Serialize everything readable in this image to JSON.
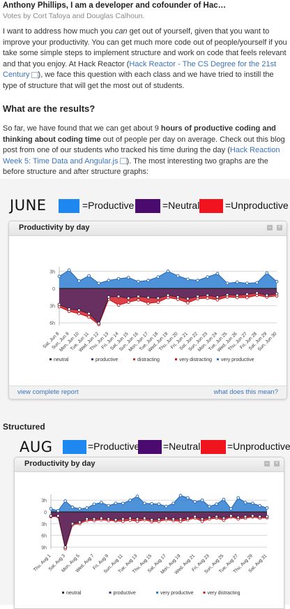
{
  "article": {
    "title": "Anthony Phillips, I am a developer and cofounder of Hac…",
    "votes_prefix": "Votes by ",
    "voters": [
      "Cort Tafoya",
      "Douglas Calhoun."
    ],
    "voters_sep": " and ",
    "para1_a": "I want to address how much you ",
    "para1_em": "can",
    "para1_b": " get out of yourself, given that you want to improve your productivity.  You can get much more code out of people/yourself if you take some simple steps to implement structure and work on code that feels relevant and that you enjoy.  At Hack Reactor (",
    "para1_link": "Hack Reactor - The CS Degree for the 21st Century",
    "para1_c": "), we face this question with each class and we have tried to instill the type of structure that will get the most out of students.",
    "heading": "What are the results?",
    "para2_a": "So far, we have found that we can get about 9 ",
    "para2_bold": "hours of productive coding and thinking about coding time",
    "para2_b": " out of people per day on average.  Check out this blog post from one of our students who tracked his time during the day (",
    "para2_link": "Hack Reaction Week 5: Time Data and Angular.js",
    "para2_c": ").  The most interesting two graphs are the before structure and after structure graphs:",
    "structured_label": "Structured"
  },
  "legend": {
    "productive": "=Productive",
    "neutral": "=Neutral",
    "unproductive": "=Unproductive"
  },
  "colors": {
    "productive": "#1e87f0",
    "neutral": "#4a0a6e",
    "unproductive": "#f0141e",
    "link": "#3b73b9"
  },
  "panel": {
    "title": "Productivity by day",
    "footer_left": "view complete report",
    "footer_right": "what does this mean?"
  },
  "chart_data": [
    {
      "type": "area",
      "month_label": "JUNE",
      "title": "Productivity by day",
      "y_ticks": [
        "3h",
        "0",
        "3h",
        "6h"
      ],
      "x": [
        "Sat, Jun 8",
        "Sun, Jun 9",
        "Mon, Jun 10",
        "Tue, Jun 11",
        "Wed, Jun 12",
        "Thu, Jun 13",
        "Fri, Jun 14",
        "Sat, Jun 15",
        "Sun, Jun 16",
        "Mon, Jun 17",
        "Tue, Jun 18",
        "Wed, Jun 19",
        "Thu, Jun 20",
        "Fri, Jun 21",
        "Sat, Jun 22",
        "Sun, Jun 23",
        "Mon, Jun 24",
        "Tue, Jun 25",
        "Wed, Jun 26",
        "Thu, Jun 27",
        "Fri, Jun 28",
        "Sat, Jun 29",
        "Sun, Jun 30"
      ],
      "x_tick_labels": [
        "Sat, Jun 8",
        "Sun, Jun 9",
        "Mon, Jun 10",
        "Tue, Jun 11",
        "Wed, Jun 12",
        "Thu, Jun 13",
        "Fri, Jun 14",
        "Sat, Jun 15",
        "Sun, Jun 16",
        "Mon, Jun 17",
        "Tue, Jun 18",
        "Wed, Jun 19",
        "Thu, Jun 20",
        "Fri, Jun 21",
        "Sat, Jun 22",
        "Sun, Jun 23",
        "Mon, Jun 24",
        "Tue, Jun 25",
        "Wed, Jun 26",
        "Thu, Jun 27",
        "Fri, Jun 28",
        "Sat, Jun 29",
        "Sun, Jun 30"
      ],
      "series": [
        {
          "name": "very productive",
          "values": [
            2.1,
            3.2,
            1.3,
            2.2,
            0.9,
            1.4,
            1.7,
            1.9,
            1.2,
            1.4,
            2.0,
            3.0,
            2.2,
            1.6,
            1.4,
            2.0,
            2.6,
            0.9,
            1.1,
            0.9,
            1.0,
            2.7,
            1.2
          ]
        },
        {
          "name": "neutral",
          "values": [
            -2.8,
            -3.6,
            -3.8,
            -4.4,
            -6.1,
            -1.5,
            -1.4,
            -1.7,
            -1.4,
            -1.6,
            -1.7,
            -1.2,
            -1.5,
            -1.8,
            -1.4,
            -1.2,
            -1.5,
            -1.1,
            -1.2,
            -1.0,
            -0.8,
            -1.2,
            -0.9
          ]
        },
        {
          "name": "very distracting",
          "values": [
            -3.2,
            -4.0,
            -4.4,
            -5.0,
            -6.3,
            -1.9,
            -2.9,
            -2.4,
            -2.0,
            -2.6,
            -2.4,
            -1.6,
            -1.9,
            -2.5,
            -1.8,
            -1.7,
            -2.0,
            -1.5,
            -1.6,
            -1.6,
            -1.2,
            -1.5,
            -1.3
          ]
        }
      ],
      "legend": [
        "neutral",
        "productive",
        "distracting",
        "very distracting",
        "very productive"
      ],
      "footer_left": "view complete report",
      "footer_right": "what does this mean?"
    },
    {
      "type": "area",
      "month_label": "AUG",
      "title": "Productivity by day",
      "y_ticks": [
        "3h",
        "0",
        "3h",
        "6h",
        "9h"
      ],
      "x": [
        "Thu, Aug 1",
        "Fri, Aug 2",
        "Sat, Aug 3",
        "Sun, Aug 4",
        "Mon, Aug 5",
        "Tue, Aug 6",
        "Wed, Aug 7",
        "Thu, Aug 8",
        "Fri, Aug 9",
        "Sat, Aug 10",
        "Sun, Aug 11",
        "Mon, Aug 12",
        "Tue, Aug 13",
        "Wed, Aug 14",
        "Thu, Aug 15",
        "Fri, Aug 16",
        "Sat, Aug 17",
        "Sun, Aug 18",
        "Mon, Aug 19",
        "Tue, Aug 20",
        "Wed, Aug 21",
        "Thu, Aug 22",
        "Fri, Aug 23",
        "Sat, Aug 24",
        "Sun, Aug 25",
        "Mon, Aug 26",
        "Tue, Aug 27",
        "Wed, Aug 28",
        "Thu, Aug 29",
        "Fri, Aug 30",
        "Sat, Aug 31"
      ],
      "x_tick_labels": [
        "Thu, Aug 1",
        "Sat, Aug 3",
        "Mon, Aug 5",
        "Wed, Aug 7",
        "Fri, Aug 9",
        "Sun, Aug 11",
        "Tue, Aug 13",
        "Thu, Aug 15",
        "Sat, Aug 17",
        "Mon, Aug 19",
        "Wed, Aug 21",
        "Fri, Aug 23",
        "Sun, Aug 25",
        "Tue, Aug 27",
        "Thu, Aug 29",
        "Sat, Aug 31"
      ],
      "series": [
        {
          "name": "very productive",
          "values": [
            0.8,
            0.3,
            2.8,
            1.2,
            0.8,
            1.0,
            2.0,
            2.4,
            1.6,
            2.2,
            2.2,
            3.0,
            4.0,
            2.2,
            2.1,
            2.0,
            1.4,
            2.2,
            4.2,
            3.6,
            2.6,
            3.0,
            1.4,
            2.0,
            3.2,
            0.8,
            3.6,
            2.4,
            2.2,
            1.6,
            1.0
          ]
        },
        {
          "name": "neutral",
          "values": [
            -1.0,
            -1.0,
            -9.0,
            -3.0,
            -2.6,
            -1.8,
            -1.8,
            -1.6,
            -1.8,
            -2.0,
            -1.8,
            -1.6,
            -1.8,
            -1.6,
            -2.0,
            -1.9,
            -1.6,
            -1.8,
            -1.8,
            -1.6,
            -1.2,
            -1.8,
            -1.4,
            -1.2,
            -1.6,
            -1.0,
            -1.4,
            -1.2,
            -1.0,
            -1.2,
            -1.2
          ]
        },
        {
          "name": "very distracting",
          "values": [
            -1.2,
            -1.2,
            -9.4,
            -3.3,
            -3.0,
            -2.2,
            -2.2,
            -2.0,
            -2.2,
            -2.3,
            -2.4,
            -2.1,
            -2.4,
            -2.0,
            -2.5,
            -2.4,
            -2.0,
            -2.2,
            -2.4,
            -2.0,
            -1.6,
            -2.4,
            -1.8,
            -1.6,
            -2.1,
            -1.3,
            -1.8,
            -1.6,
            -1.3,
            -1.6,
            -1.5
          ]
        }
      ],
      "legend": [
        "neutral",
        "productive",
        "very productive",
        "very distracting"
      ]
    }
  ]
}
